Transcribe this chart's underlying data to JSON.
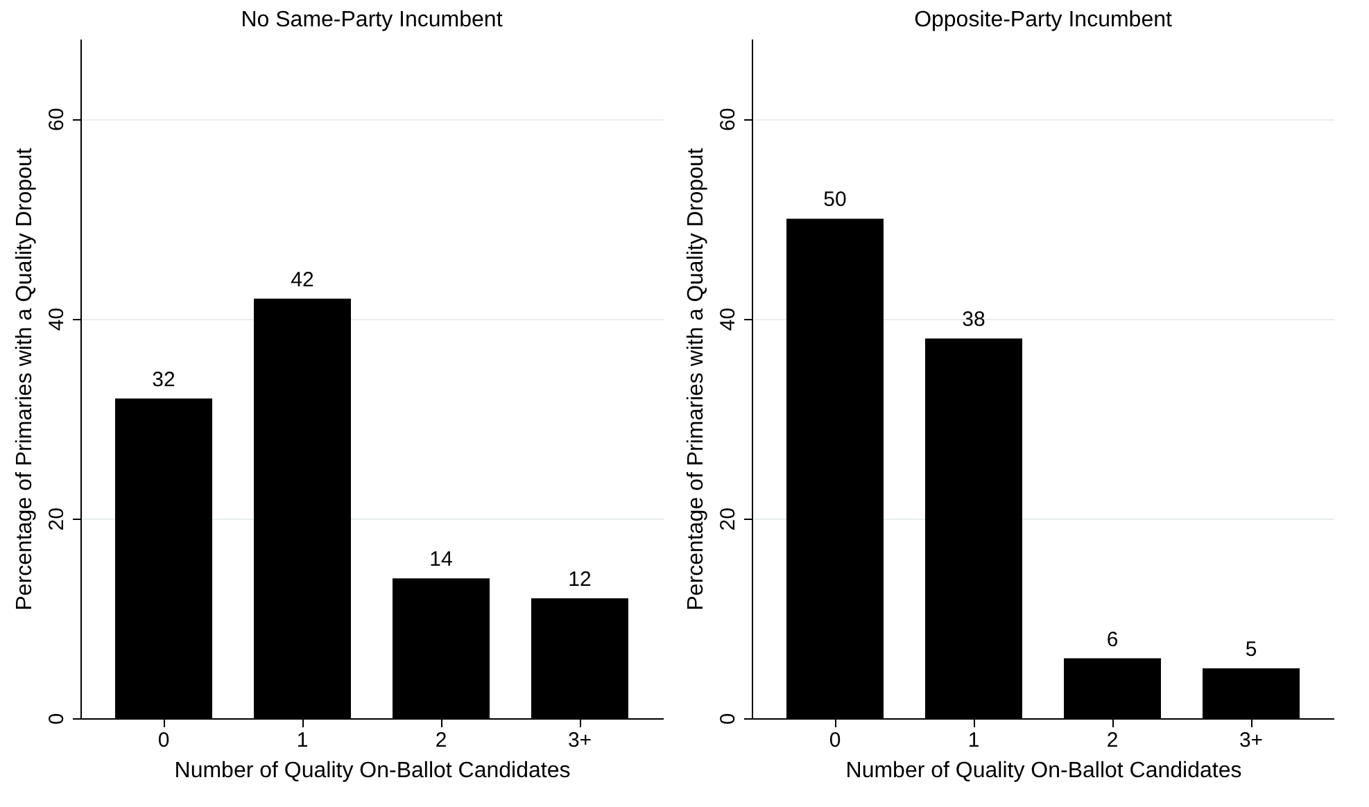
{
  "chart_data": [
    {
      "type": "bar",
      "title": "No Same-Party Incumbent",
      "xlabel": "Number of Quality On-Ballot Candidates",
      "ylabel": "Percentage of Primaries with a Quality Dropout",
      "categories": [
        "0",
        "1",
        "2",
        "3+"
      ],
      "values": [
        32,
        42,
        14,
        12
      ],
      "color": "#000000",
      "ylim": [
        0,
        68
      ],
      "yticks": [
        0,
        20,
        40,
        60
      ],
      "grid": "y",
      "data_labels": true
    },
    {
      "type": "bar",
      "title": "Opposite-Party Incumbent",
      "xlabel": "Number of Quality On-Ballot Candidates",
      "ylabel": "Percentage of Primaries with a Quality Dropout",
      "categories": [
        "0",
        "1",
        "2",
        "3+"
      ],
      "values": [
        50,
        38,
        6,
        5
      ],
      "color": "#000000",
      "ylim": [
        0,
        68
      ],
      "yticks": [
        0,
        20,
        40,
        60
      ],
      "grid": "y",
      "data_labels": true
    }
  ]
}
